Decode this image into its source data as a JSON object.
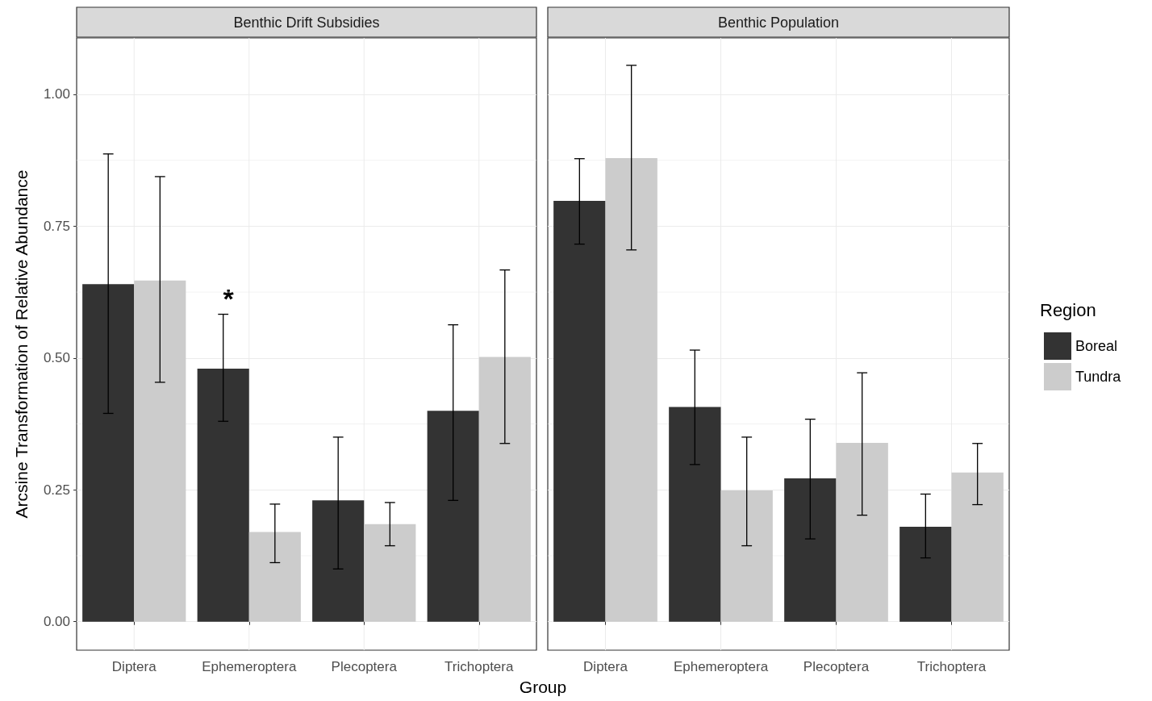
{
  "chart_data": [
    {
      "type": "bar",
      "title": "Benthic Drift Subsidies",
      "ylabel": "Arcsine Transformation of Relative Abundance",
      "xlabel": "Group",
      "categories": [
        "Diptera",
        "Ephemeroptera",
        "Plecoptera",
        "Trichoptera"
      ],
      "series": [
        {
          "color": "#333333",
          "values": [
            0.64,
            0.48,
            0.23,
            0.4
          ],
          "errors": [
            [
              0.395,
              0.887
            ],
            [
              0.38,
              0.583
            ],
            [
              0.1,
              0.35
            ],
            [
              0.23,
              0.563
            ]
          ]
        },
        {
          "color": "#cccccc",
          "values": [
            0.647,
            0.17,
            0.185,
            0.502
          ],
          "errors": [
            [
              0.454,
              0.844
            ],
            [
              0.112,
              0.223
            ],
            [
              0.144,
              0.226
            ],
            [
              0.338,
              0.667
            ]
          ]
        }
      ],
      "ylim": [
        -0.054,
        1.107
      ],
      "yticks": [
        {
          "value": 0,
          "label": "0.00"
        },
        {
          "value": 0.25,
          "label": "0.25"
        },
        {
          "value": 0.5,
          "label": "0.50"
        },
        {
          "value": 0.75,
          "label": "0.75"
        },
        {
          "value": 1,
          "label": "1.00"
        }
      ],
      "annotations": [
        "*"
      ],
      "grid": true,
      "legend": false
    },
    {
      "type": "bar",
      "title": "Benthic Population",
      "categories": [
        "Diptera",
        "Ephemeroptera",
        "Plecoptera",
        "Trichoptera"
      ],
      "series": [
        {
          "name": "Boreal",
          "color": "#333333",
          "values": [
            0.798,
            0.407,
            0.272,
            0.18
          ],
          "errors": [
            [
              0.716,
              0.878
            ],
            [
              0.298,
              0.515
            ],
            [
              0.157,
              0.384
            ],
            [
              0.121,
              0.242
            ]
          ]
        },
        {
          "name": "Tundra",
          "color": "#cccccc",
          "values": [
            0.879,
            0.249,
            0.339,
            0.283
          ],
          "errors": [
            [
              0.705,
              1.055
            ],
            [
              0.144,
              0.35
            ],
            [
              0.202,
              0.472
            ],
            [
              0.222,
              0.338
            ]
          ]
        }
      ],
      "ylim": [
        -0.054,
        1.107
      ],
      "yticks": [
        0,
        0.25,
        0.5,
        0.75,
        1
      ],
      "tick_labels": "x",
      "grid": true,
      "legend": "right",
      "legend_title": "Region"
    }
  ]
}
